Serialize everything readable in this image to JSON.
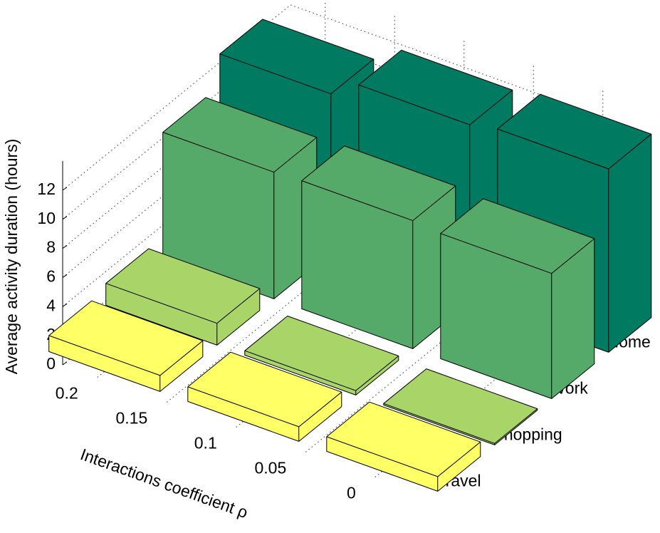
{
  "chart_data": {
    "type": "bar3d",
    "y_label": "Average activity duration (hours)",
    "x_label": "Interactions coefficient  ρ",
    "x": [
      0.2,
      0.1,
      0
    ],
    "xlim": [
      0.225,
      -0.025
    ],
    "xticks": [
      0.2,
      0.15,
      0.1,
      0.05,
      0
    ],
    "ylim": [
      0,
      14
    ],
    "yticks": [
      0,
      2,
      4,
      6,
      8,
      10,
      12
    ],
    "grid": true,
    "series": [
      {
        "name": "Travel",
        "color": "#ffff66",
        "values": [
          1.1,
          1.0,
          1.0
        ]
      },
      {
        "name": "Shopping",
        "color": "#a8d468",
        "values": [
          1.5,
          0.3,
          0.1
        ]
      },
      {
        "name": "Work",
        "color": "#56aa69",
        "values": [
          8.7,
          8.8,
          8.6
        ]
      },
      {
        "name": "Home",
        "color": "#007a60",
        "values": [
          10.9,
          12.2,
          12.6
        ]
      }
    ]
  }
}
